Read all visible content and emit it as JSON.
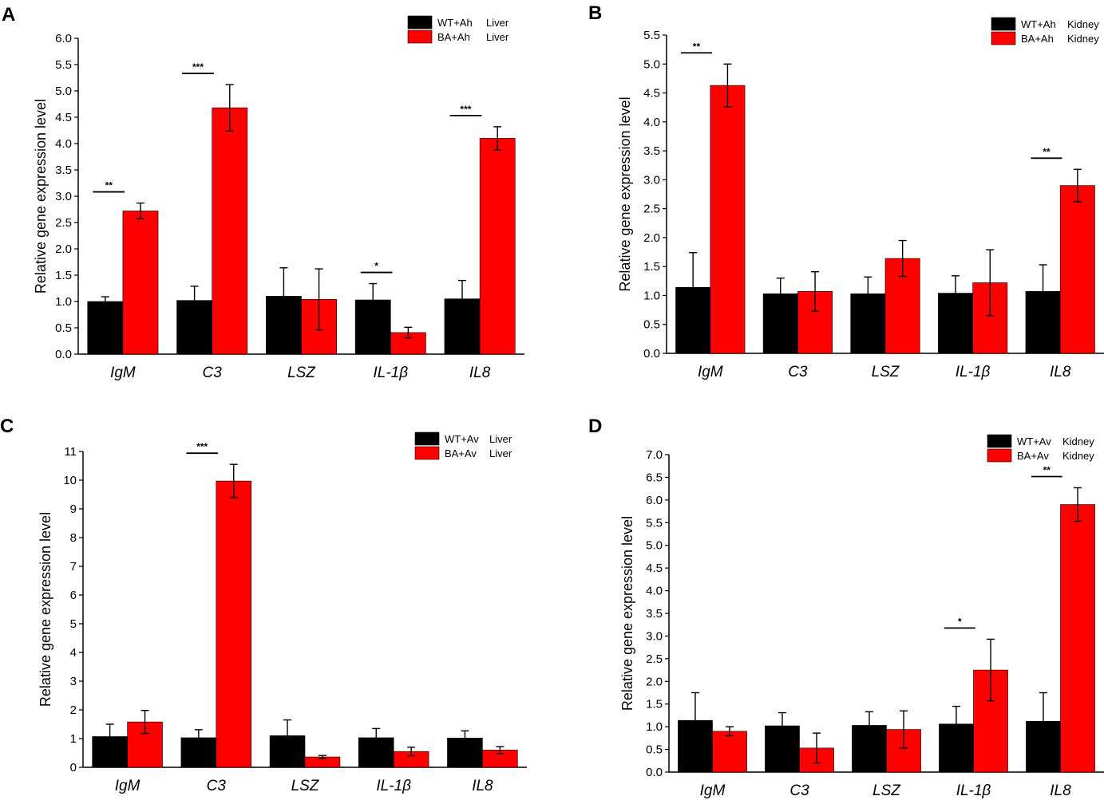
{
  "colors": {
    "wt": "#000000",
    "ba": "#ff0000"
  },
  "chart_data": [
    {
      "panel": "A",
      "type": "bar",
      "categories": [
        "IgM",
        "C3",
        "LSZ",
        "IL-1β",
        "IL8"
      ],
      "ylabel": "Relative gene expression level",
      "ylim": [
        0,
        6.0
      ],
      "yticks": [
        "0.0",
        "0.5",
        "1.0",
        "1.5",
        "2.0",
        "2.5",
        "3.0",
        "3.5",
        "4.0",
        "4.5",
        "5.0",
        "5.5",
        "6.0"
      ],
      "legend": {
        "position": "top-right",
        "entries": [
          {
            "group": "WT+Ah",
            "tissue": "Liver"
          },
          {
            "group": "BA+Ah",
            "tissue": "Liver"
          }
        ]
      },
      "series": [
        {
          "name": "WT+Ah Liver",
          "values": [
            1.0,
            1.02,
            1.1,
            1.03,
            1.05
          ],
          "errors": [
            0.09,
            0.27,
            0.54,
            0.31,
            0.35
          ]
        },
        {
          "name": "BA+Ah Liver",
          "values": [
            2.72,
            4.68,
            1.04,
            0.41,
            4.1
          ],
          "errors": [
            0.15,
            0.44,
            0.58,
            0.1,
            0.22
          ]
        }
      ],
      "significance": [
        "**",
        "***",
        "",
        "*",
        "***"
      ]
    },
    {
      "panel": "B",
      "type": "bar",
      "categories": [
        "IgM",
        "C3",
        "LSZ",
        "IL-1β",
        "IL8"
      ],
      "ylabel": "Relative gene expression level",
      "ylim": [
        0,
        5.5
      ],
      "yticks": [
        "0.0",
        "0.5",
        "1.0",
        "1.5",
        "2.0",
        "2.5",
        "3.0",
        "3.5",
        "4.0",
        "4.5",
        "5.0",
        "5.5"
      ],
      "legend": {
        "position": "top-right",
        "entries": [
          {
            "group": "WT+Ah",
            "tissue": "Kidney"
          },
          {
            "group": "BA+Ah",
            "tissue": "Kidney"
          }
        ]
      },
      "series": [
        {
          "name": "WT+Ah Kidney",
          "values": [
            1.14,
            1.03,
            1.03,
            1.04,
            1.07
          ],
          "errors": [
            0.6,
            0.27,
            0.29,
            0.3,
            0.46
          ]
        },
        {
          "name": "BA+Ah Kidney",
          "values": [
            4.63,
            1.07,
            1.64,
            1.22,
            2.9
          ],
          "errors": [
            0.37,
            0.34,
            0.31,
            0.57,
            0.28
          ]
        }
      ],
      "significance": [
        "**",
        "",
        "",
        "",
        "**"
      ]
    },
    {
      "panel": "C",
      "type": "bar",
      "categories": [
        "IgM",
        "C3",
        "LSZ",
        "IL-1β",
        "IL8"
      ],
      "ylabel": "Relative gene expression level",
      "ylim": [
        0,
        11
      ],
      "yticks": [
        "0",
        "1",
        "2",
        "3",
        "4",
        "5",
        "6",
        "7",
        "8",
        "9",
        "10",
        "11"
      ],
      "legend": {
        "position": "top-right",
        "entries": [
          {
            "group": "WT+Av",
            "tissue": "Liver"
          },
          {
            "group": "BA+Av",
            "tissue": "Liver"
          }
        ]
      },
      "series": [
        {
          "name": "WT+Av Liver",
          "values": [
            1.07,
            1.03,
            1.1,
            1.03,
            1.02
          ],
          "errors": [
            0.43,
            0.28,
            0.55,
            0.32,
            0.25
          ]
        },
        {
          "name": "BA+Av Liver",
          "values": [
            1.58,
            9.97,
            0.36,
            0.55,
            0.6
          ],
          "errors": [
            0.4,
            0.58,
            0.05,
            0.15,
            0.12
          ]
        }
      ],
      "significance": [
        "",
        "***",
        "",
        "",
        ""
      ]
    },
    {
      "panel": "D",
      "type": "bar",
      "categories": [
        "IgM",
        "C3",
        "LSZ",
        "IL-1β",
        "IL8"
      ],
      "ylabel": "Relative gene expression level",
      "ylim": [
        0,
        7.0
      ],
      "yticks": [
        "0.0",
        "0.5",
        "1.0",
        "1.5",
        "2.0",
        "2.5",
        "3.0",
        "3.5",
        "4.0",
        "4.5",
        "5.0",
        "5.5",
        "6.0",
        "6.5",
        "7.0"
      ],
      "legend": {
        "position": "top-right",
        "entries": [
          {
            "group": "WT+Av",
            "tissue": "Kidney"
          },
          {
            "group": "BA+Av",
            "tissue": "Kidney"
          }
        ]
      },
      "series": [
        {
          "name": "WT+Av Kidney",
          "values": [
            1.14,
            1.02,
            1.03,
            1.06,
            1.12
          ],
          "errors": [
            0.61,
            0.29,
            0.3,
            0.39,
            0.63
          ]
        },
        {
          "name": "BA+Av Kidney",
          "values": [
            0.9,
            0.53,
            0.94,
            2.25,
            5.9
          ],
          "errors": [
            0.1,
            0.33,
            0.41,
            0.68,
            0.37
          ]
        }
      ],
      "significance": [
        "",
        "",
        "",
        "*",
        "**"
      ]
    }
  ]
}
